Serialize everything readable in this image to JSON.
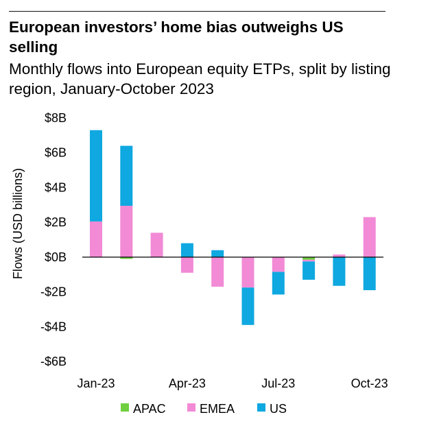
{
  "title": "European investors’ home bias outweighs US selling",
  "subtitle": "Monthly flows into European equity ETPs, split by listing region, January-October 2023",
  "chart_data": {
    "type": "bar",
    "stacked": true,
    "categories": [
      "Jan-23",
      "Feb-23",
      "Mar-23",
      "Apr-23",
      "May-23",
      "Jun-23",
      "Jul-23",
      "Aug-23",
      "Sep-23",
      "Oct-23"
    ],
    "xtick_labels": [
      "Jan-23",
      "Apr-23",
      "Jul-23",
      "Oct-23"
    ],
    "ytick_labels": [
      "$8B",
      "$6B",
      "$4B",
      "$2B",
      "$0B",
      "-$2B",
      "-$4B",
      "-$6B"
    ],
    "ytick_values": [
      8,
      6,
      4,
      2,
      0,
      -2,
      -4,
      -6
    ],
    "ylabel": "Flows (USD billions)",
    "ylim": [
      -6,
      8
    ],
    "grid": false,
    "legend_position": "bottom",
    "series": [
      {
        "name": "APAC",
        "color": "#6fcf3f",
        "values": [
          0.0,
          -0.1,
          0.0,
          0.0,
          0.0,
          0.0,
          0.0,
          -0.15,
          0.0,
          0.0
        ]
      },
      {
        "name": "EMEA",
        "color": "#f28ad6",
        "values": [
          2.05,
          2.95,
          1.4,
          -0.9,
          -1.7,
          -1.75,
          -0.85,
          -0.1,
          0.15,
          2.3
        ]
      },
      {
        "name": "US",
        "color": "#0fa8e0",
        "values": [
          5.25,
          3.45,
          0.0,
          0.8,
          0.4,
          -2.15,
          -1.3,
          -1.05,
          -1.65,
          -1.9
        ]
      }
    ]
  }
}
